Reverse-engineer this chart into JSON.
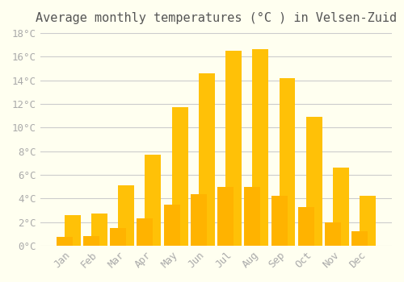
{
  "title": "Average monthly temperatures (°C ) in Velsen-Zuid",
  "months": [
    "Jan",
    "Feb",
    "Mar",
    "Apr",
    "May",
    "Jun",
    "Jul",
    "Aug",
    "Sep",
    "Oct",
    "Nov",
    "Dec"
  ],
  "values": [
    2.6,
    2.7,
    5.1,
    7.7,
    11.7,
    14.6,
    16.5,
    16.6,
    14.2,
    10.9,
    6.6,
    4.2
  ],
  "bar_color_top": "#FFC107",
  "bar_color_bottom": "#FFB300",
  "background_color": "#FFFFF0",
  "grid_color": "#CCCCCC",
  "ylim": [
    0,
    18
  ],
  "yticks": [
    0,
    2,
    4,
    6,
    8,
    10,
    12,
    14,
    16,
    18
  ],
  "tick_label_color": "#AAAAAA",
  "title_color": "#555555",
  "title_fontsize": 11
}
